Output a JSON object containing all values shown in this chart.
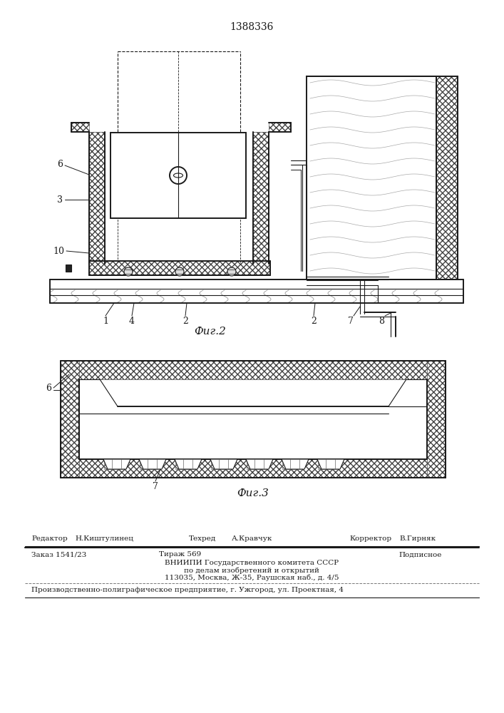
{
  "patent_number": "1388336",
  "fig2_label": "Фиг.2",
  "fig3_label": "Фиг.3",
  "editor_label": "Редактор",
  "editor_name": "Н.Киштулинец",
  "techred_label": "Техред",
  "techred_name": "А.Кравчук",
  "corrector_label": "Корректор",
  "corrector_name": "В.Гирняк",
  "order_label": "Заказ 1541/23",
  "tirazh_label": "Тираж 569",
  "podpisnoe_label": "Подписное",
  "vnipi_line1": "ВНИИПИ Государственного комитета СССР",
  "vnipi_line2": "по делам изобретений и открытий",
  "vnipi_line3": "113035, Москва, Ж-35, Раушская наб., д. 4/5",
  "factory_line": "Производственно-полиграфическое предприятие, г. Ужгород, ул. Проектная, 4",
  "bg_color": "#ffffff",
  "line_color": "#1a1a1a"
}
